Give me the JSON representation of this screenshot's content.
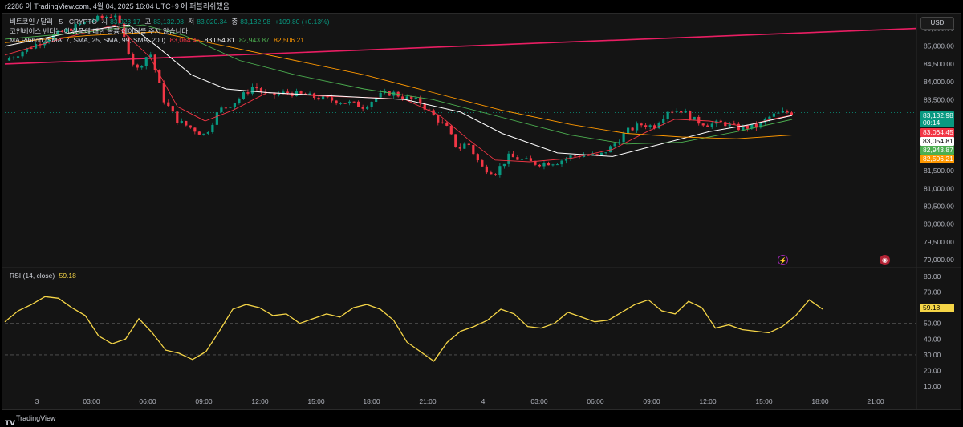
{
  "header": {
    "title": "r2286 이 TradingView.com, 4월 04, 2025 16:04 UTC+9 에 퍼블리쉬했음"
  },
  "legend": {
    "symbol": "비트코인 / 달러 · 5 · CRYPTO",
    "o_label": "시",
    "o_value": "83,023.17",
    "h_label": "고",
    "h_value": "83,132.98",
    "l_label": "저",
    "l_value": "83,020.34",
    "c_label": "종",
    "c_value": "83,132.98",
    "change": "+109.80 (+0.13%)",
    "notice": "코인베이스 벤더는 이 상품에 대한 볼륨 데이터를 주지 않습니다.",
    "ma_title": "MA Ribbon (SMA, 7, SMA, 25, SMA, 99, SMA, 200)",
    "ma_values": [
      "83,064.45",
      "83,054.81",
      "82,943.87",
      "82,506.21"
    ]
  },
  "rsi_legend": {
    "title": "RSI (14, close)",
    "value": "59.18"
  },
  "usd_button": "USD",
  "price_tags": [
    {
      "value": "83,132.98",
      "sub": "00:14",
      "color": "#089981"
    },
    {
      "value": "83,064.45",
      "color": "#f23645"
    },
    {
      "value": "83,054.81",
      "color": "#ffffff"
    },
    {
      "value": "82,943.87",
      "color": "#4caf50"
    },
    {
      "value": "82,506.21",
      "color": "#ff9800"
    }
  ],
  "rsi_tag": {
    "value": "59.18",
    "color": "#f5d547"
  },
  "footer": {
    "brand": "TradingView"
  },
  "chart_data": [
    {
      "type": "line",
      "title": "비트코인 / 달러 · 5 · CRYPTO",
      "price_axis": [
        85500,
        85000,
        84500,
        84000,
        83500,
        83000,
        82500,
        82000,
        81500,
        81000,
        80500,
        80000,
        79500,
        79000
      ],
      "price_axis_labels": [
        "85,500.00",
        "85,000.00",
        "84,500.00",
        "84,000.00",
        "83,500.00",
        "83,000.00",
        "82,500.00",
        "82,000.00",
        "81,500.00",
        "81,000.00",
        "80,500.00",
        "80,000.00",
        "79,500.00",
        "79,000.00"
      ],
      "ylim": [
        78800,
        85850
      ],
      "time_labels": [
        "3",
        "03:00",
        "06:00",
        "09:00",
        "12:00",
        "15:00",
        "18:00",
        "21:00",
        "4",
        "03:00",
        "06:00",
        "09:00",
        "12:00",
        "15:00",
        "18:00",
        "21:00"
      ],
      "price_series": [
        [
          0,
          84600
        ],
        [
          3,
          85200
        ],
        [
          6,
          85700
        ],
        [
          8,
          85900
        ],
        [
          9.5,
          84300
        ],
        [
          10.5,
          84850
        ],
        [
          11.5,
          83500
        ],
        [
          12.5,
          82900
        ],
        [
          13.5,
          82700
        ],
        [
          14.5,
          82500
        ],
        [
          15.5,
          83200
        ],
        [
          16.5,
          83400
        ],
        [
          17.5,
          83700
        ],
        [
          18,
          83900
        ],
        [
          19,
          83600
        ],
        [
          20.5,
          83700
        ],
        [
          22,
          83600
        ],
        [
          23.5,
          83500
        ],
        [
          25,
          83400
        ],
        [
          26,
          83300
        ],
        [
          27,
          83600
        ],
        [
          28,
          83700
        ],
        [
          29,
          83550
        ],
        [
          30,
          83450
        ],
        [
          31,
          83050
        ],
        [
          32,
          82700
        ],
        [
          32.8,
          82100
        ],
        [
          33.5,
          82300
        ],
        [
          34.5,
          81600
        ],
        [
          35.5,
          81450
        ],
        [
          36.5,
          81900
        ],
        [
          37.5,
          81800
        ],
        [
          38.5,
          81700
        ],
        [
          40,
          81750
        ],
        [
          41,
          81900
        ],
        [
          42,
          81950
        ],
        [
          43,
          81900
        ],
        [
          44,
          82200
        ],
        [
          45,
          82600
        ],
        [
          46,
          82800
        ],
        [
          47,
          82750
        ],
        [
          48,
          83200
        ],
        [
          49,
          83200
        ],
        [
          50,
          82900
        ],
        [
          51,
          82800
        ],
        [
          52,
          82850
        ],
        [
          53,
          82700
        ],
        [
          54.5,
          82750
        ],
        [
          55.5,
          83050
        ],
        [
          56.5,
          83150
        ],
        [
          57,
          83130
        ]
      ],
      "series": [
        {
          "values": [
            [
              0,
              84750
            ],
            [
              4,
              85200
            ],
            [
              8,
              85600
            ],
            [
              10.5,
              84700
            ],
            [
              12.5,
              83300
            ],
            [
              14.5,
              82900
            ],
            [
              16.5,
              83200
            ],
            [
              19,
              83700
            ],
            [
              23,
              83600
            ],
            [
              27,
              83550
            ],
            [
              29,
              83500
            ],
            [
              31.5,
              83050
            ],
            [
              33.5,
              82400
            ],
            [
              35.5,
              81800
            ],
            [
              38,
              81750
            ],
            [
              41,
              81850
            ],
            [
              44,
              82100
            ],
            [
              46.5,
              82600
            ],
            [
              48.5,
              82950
            ],
            [
              51,
              82900
            ],
            [
              53.5,
              82750
            ],
            [
              55.5,
              82950
            ],
            [
              57,
              83064
            ]
          ]
        },
        {
          "values": [
            [
              0,
              85000
            ],
            [
              5,
              85400
            ],
            [
              9,
              85600
            ],
            [
              11,
              85000
            ],
            [
              13.5,
              84200
            ],
            [
              16,
              83800
            ],
            [
              19,
              83700
            ],
            [
              24,
              83600
            ],
            [
              29,
              83500
            ],
            [
              33,
              83150
            ],
            [
              36,
              82550
            ],
            [
              40,
              82000
            ],
            [
              44,
              81900
            ],
            [
              48,
              82300
            ],
            [
              51,
              82600
            ],
            [
              54,
              82800
            ],
            [
              57,
              83054
            ]
          ]
        },
        {
          "values": [
            [
              0,
              85200
            ],
            [
              6,
              85400
            ],
            [
              10,
              85600
            ],
            [
              13,
              85300
            ],
            [
              17,
              84600
            ],
            [
              21,
              84200
            ],
            [
              26,
              83800
            ],
            [
              31,
              83500
            ],
            [
              36,
              83000
            ],
            [
              41,
              82500
            ],
            [
              45,
              82250
            ],
            [
              49,
              82300
            ],
            [
              53,
              82600
            ],
            [
              57,
              82944
            ]
          ]
        },
        {
          "values": [
            [
              0,
              85100
            ],
            [
              6,
              85300
            ],
            [
              11,
              85400
            ],
            [
              16,
              85000
            ],
            [
              21,
              84600
            ],
            [
              26,
              84200
            ],
            [
              31,
              83700
            ],
            [
              36,
              83200
            ],
            [
              41,
              82800
            ],
            [
              45,
              82550
            ],
            [
              49,
              82450
            ],
            [
              53,
              82400
            ],
            [
              57,
              82506
            ]
          ]
        }
      ],
      "trendline": [
        [
          0,
          84500
        ],
        [
          66,
          85500
        ]
      ],
      "last_price_line": 83132.98,
      "x_range": [
        0,
        66
      ]
    },
    {
      "type": "line",
      "title": "RSI (14, close)",
      "rsi_axis": [
        80,
        70,
        60,
        50,
        40,
        30,
        20,
        10
      ],
      "rsi_axis_labels": [
        "80.00",
        "70.00",
        "60.00",
        "50.00",
        "40.00",
        "30.00",
        "20.00",
        "10.00"
      ],
      "ylim": [
        5,
        85
      ],
      "bands": [
        70,
        50,
        30
      ],
      "values": [
        [
          0,
          51
        ],
        [
          1,
          58
        ],
        [
          2,
          62
        ],
        [
          3,
          67
        ],
        [
          4,
          66
        ],
        [
          5,
          60
        ],
        [
          6,
          55
        ],
        [
          7,
          42
        ],
        [
          8,
          37
        ],
        [
          9,
          40
        ],
        [
          10,
          53
        ],
        [
          11,
          44
        ],
        [
          12,
          33
        ],
        [
          13,
          31
        ],
        [
          14,
          27
        ],
        [
          15,
          32
        ],
        [
          16,
          45
        ],
        [
          17,
          59
        ],
        [
          18,
          62
        ],
        [
          19,
          60
        ],
        [
          20,
          55
        ],
        [
          21,
          56
        ],
        [
          22,
          50
        ],
        [
          23,
          53
        ],
        [
          24,
          56
        ],
        [
          25,
          54
        ],
        [
          26,
          60
        ],
        [
          27,
          62
        ],
        [
          28,
          59
        ],
        [
          29,
          52
        ],
        [
          30,
          38
        ],
        [
          31,
          32
        ],
        [
          32,
          26
        ],
        [
          33,
          38
        ],
        [
          34,
          45
        ],
        [
          35,
          48
        ],
        [
          36,
          52
        ],
        [
          37,
          59
        ],
        [
          38,
          56
        ],
        [
          39,
          48
        ],
        [
          40,
          47
        ],
        [
          41,
          50
        ],
        [
          42,
          57
        ],
        [
          43,
          54
        ],
        [
          44,
          51
        ],
        [
          45,
          52
        ],
        [
          46,
          57
        ],
        [
          47,
          62
        ],
        [
          48,
          65
        ],
        [
          49,
          58
        ],
        [
          50,
          56
        ],
        [
          51,
          64
        ],
        [
          52,
          60
        ],
        [
          53,
          47
        ],
        [
          54,
          49
        ],
        [
          55,
          46
        ],
        [
          56,
          45
        ],
        [
          57,
          44
        ],
        [
          58,
          48
        ],
        [
          59,
          55
        ],
        [
          60,
          65
        ],
        [
          61,
          59
        ]
      ],
      "x_range": [
        0,
        68
      ],
      "current": 59.18
    }
  ]
}
